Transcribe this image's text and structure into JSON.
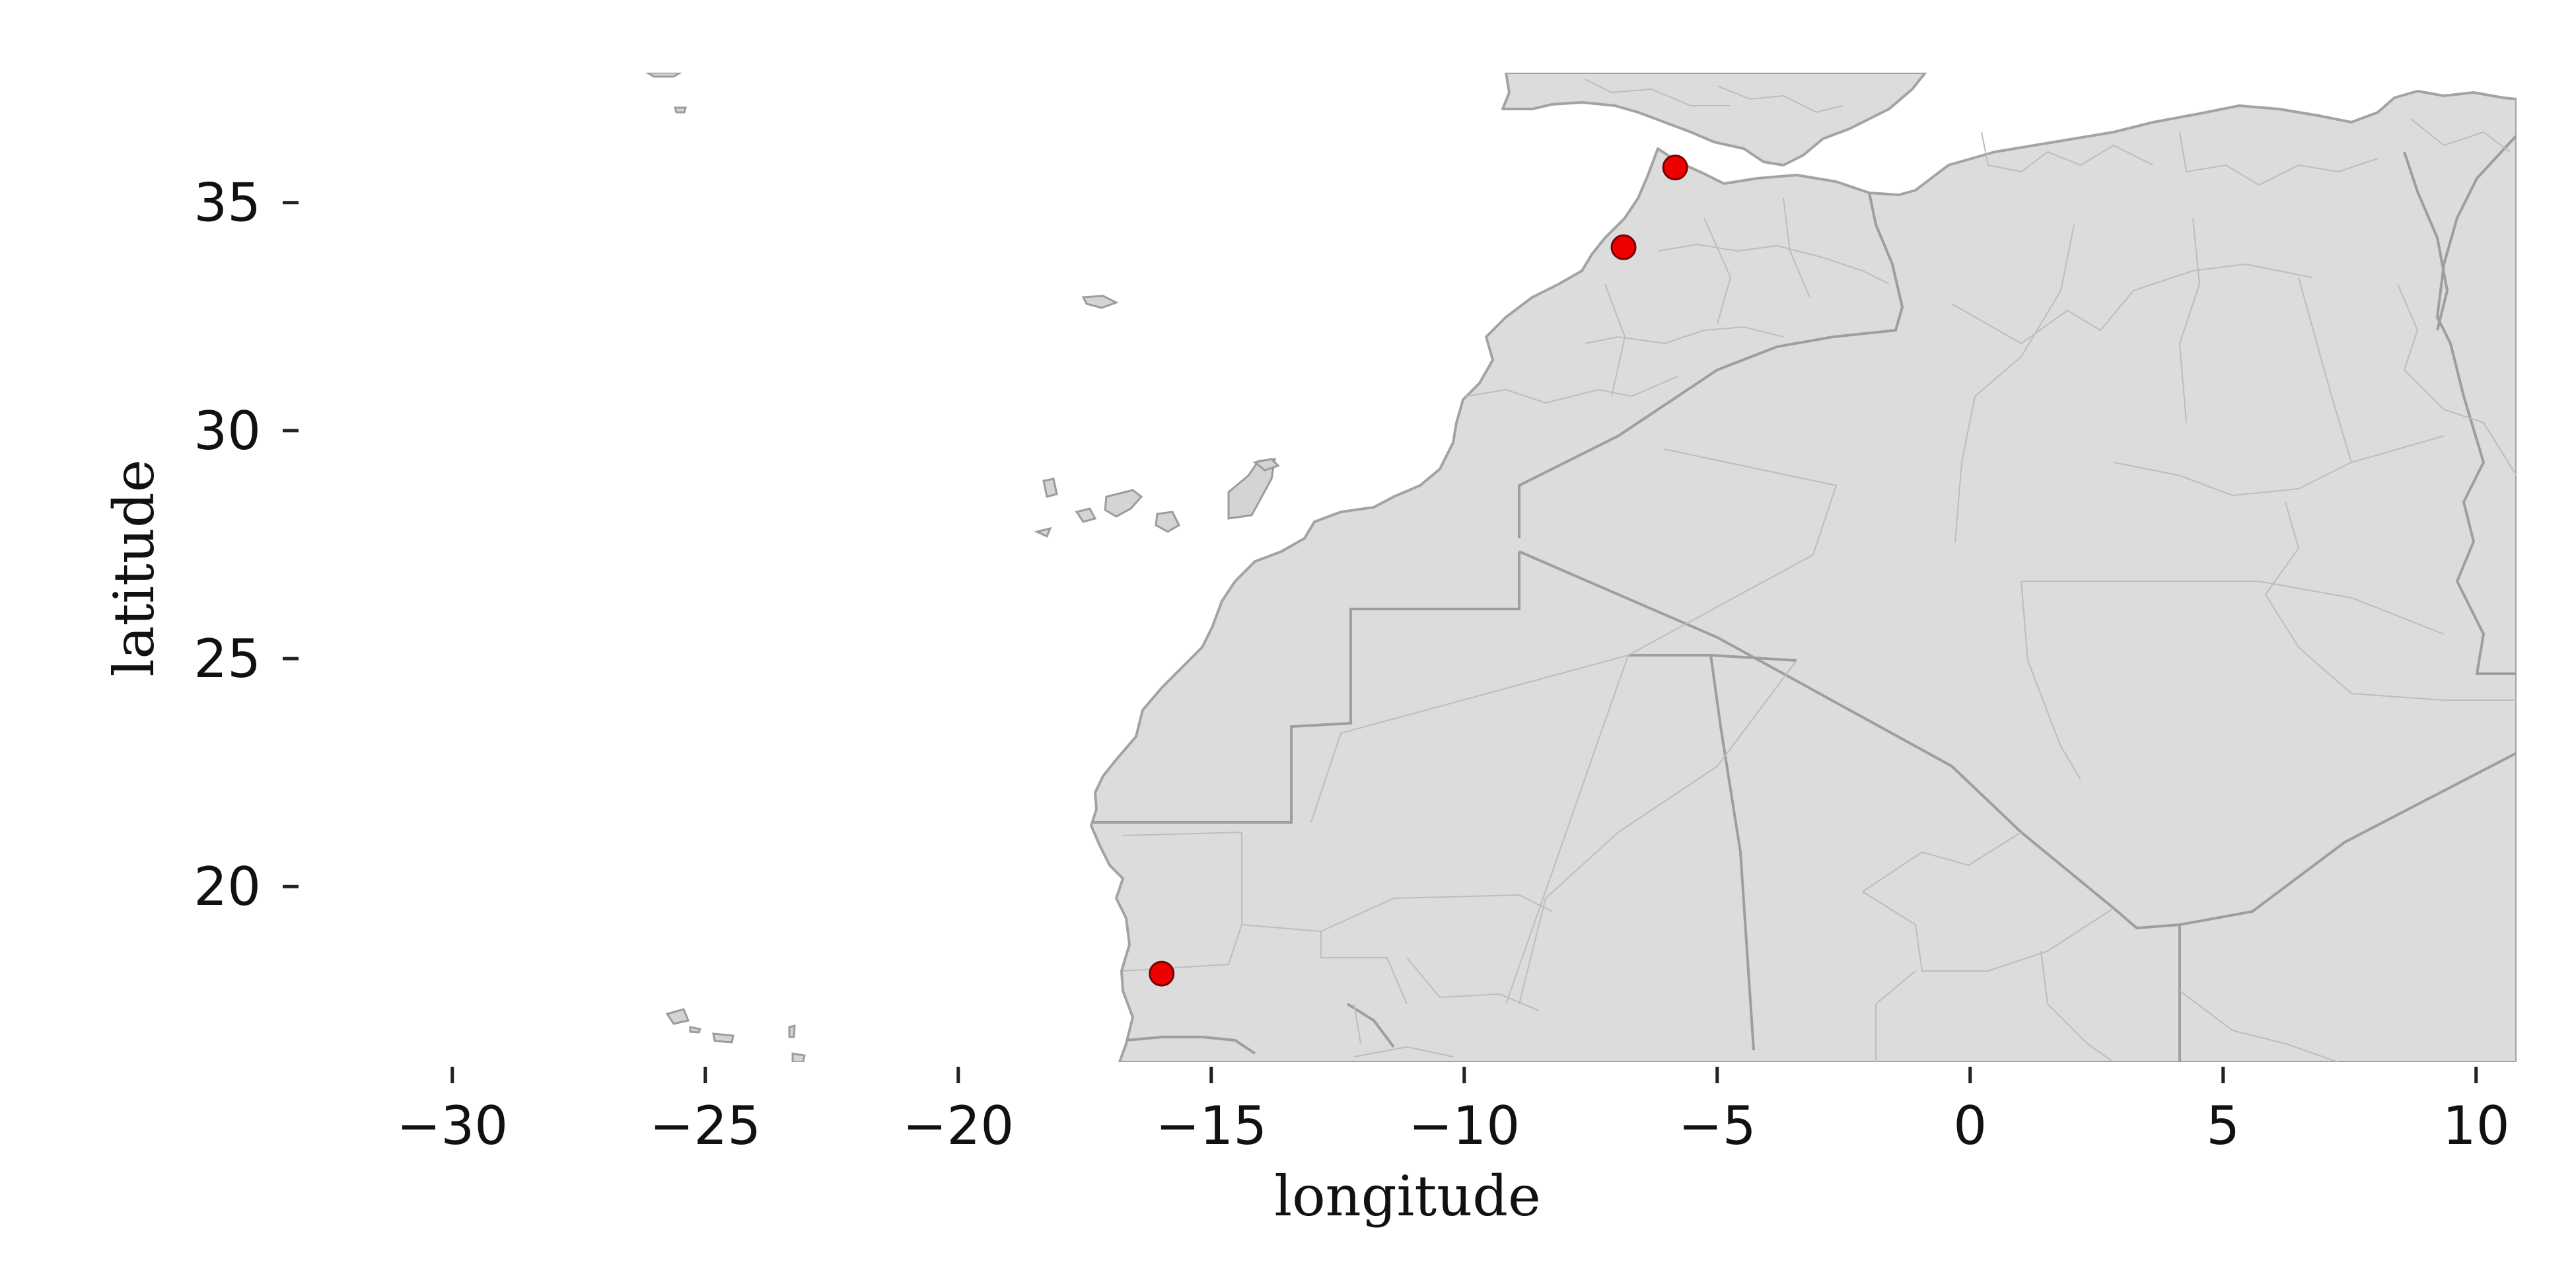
{
  "map": {
    "xlabel": "longitude",
    "ylabel": "latitude",
    "xlim": [
      -33,
      10.8
    ],
    "ylim": [
      16.15,
      37.85
    ],
    "x_ticks": [
      -30,
      -25,
      -20,
      -15,
      -10,
      -5,
      0,
      5,
      10
    ],
    "y_ticks": [
      20,
      25,
      30,
      35
    ],
    "land_color": "#dcdcdc",
    "border_color": "#9e9e9e",
    "marker_color": "#ee0000",
    "points": [
      {
        "lon": -5.83,
        "lat": 35.77
      },
      {
        "lon": -6.85,
        "lat": 34.02
      },
      {
        "lon": -15.98,
        "lat": 18.09
      }
    ]
  }
}
